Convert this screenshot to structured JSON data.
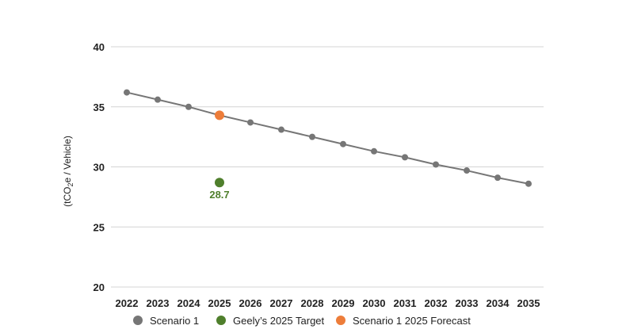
{
  "chart_data": {
    "type": "line",
    "title": "",
    "xlabel": "",
    "ylabel_parts": [
      "(tCO",
      "2",
      "e / Vehicle)"
    ],
    "ylim": [
      20,
      40
    ],
    "yticks": [
      20,
      25,
      30,
      35,
      40
    ],
    "grid": true,
    "legend_position": "bottom",
    "x": [
      2022,
      2023,
      2024,
      2025,
      2026,
      2027,
      2028,
      2029,
      2030,
      2031,
      2032,
      2033,
      2034,
      2035
    ],
    "series": [
      {
        "name": "Scenario 1",
        "color": "#767676",
        "type": "line",
        "x": [
          2022,
          2023,
          2024,
          2025,
          2026,
          2027,
          2028,
          2029,
          2030,
          2031,
          2032,
          2033,
          2034,
          2035
        ],
        "values": [
          36.2,
          35.6,
          35.0,
          34.3,
          33.7,
          33.1,
          32.5,
          31.9,
          31.3,
          30.8,
          30.2,
          29.7,
          29.1,
          28.6
        ]
      },
      {
        "name": "Geely’s 2025 Target",
        "color": "#4f7f2c",
        "type": "point",
        "x": [
          2025
        ],
        "values": [
          28.7
        ],
        "data_label": "28.7"
      },
      {
        "name": "Scenario 1 2025 Forecast",
        "color": "#ed7d3a",
        "type": "point",
        "x": [
          2025
        ],
        "values": [
          34.3
        ]
      }
    ]
  }
}
